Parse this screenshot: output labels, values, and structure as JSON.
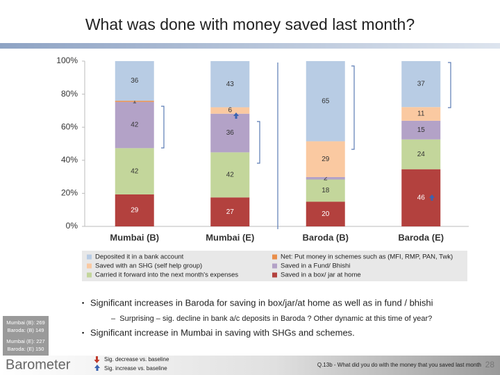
{
  "chart_data": {
    "type": "stacked_percent",
    "title": "What was done with money saved last month?",
    "categories": [
      "Mumbai (B)",
      "Mumbai (E)",
      "Baroda (B)",
      "Baroda (E)"
    ],
    "series": [
      {
        "name": "Saved in a box/ jar at home",
        "color": "#b3413e",
        "values": [
          29,
          27,
          20,
          46
        ]
      },
      {
        "name": "Carried it forward into the next month's expenses",
        "color": "#c3d69b",
        "values": [
          42,
          42,
          18,
          24
        ]
      },
      {
        "name": "Saved in a Fund/ Bhishi",
        "color": "#b3a2c7",
        "values": [
          42,
          36,
          2,
          15
        ]
      },
      {
        "name": "Saved with an SHG (self help group)",
        "color": "#fac9a1",
        "values": [
          null,
          6,
          29,
          11
        ]
      },
      {
        "name": "Net: Put money in schemes such as (MFI, RMP, PAN, Twk)",
        "color": "#e98e4a",
        "values": [
          1,
          null,
          null,
          null
        ]
      },
      {
        "name": "Deposited it in a bank account",
        "color": "#b8cce4",
        "values": [
          36,
          43,
          65,
          37
        ]
      }
    ],
    "ylim": [
      0,
      100
    ],
    "yticks": [
      {
        "value": 0,
        "label": "0%"
      },
      {
        "value": 20,
        "label": "20%"
      },
      {
        "value": 40,
        "label": "40%"
      },
      {
        "value": 60,
        "label": "60%"
      },
      {
        "value": 80,
        "label": "80%"
      },
      {
        "value": 100,
        "label": "100%"
      }
    ],
    "grid": false
  },
  "bullets": [
    "Significant increases in Baroda for saving in box/jar/at home as well as in fund / bhishi",
    "Significant increase in Mumbai in saving with SHGs and schemes."
  ],
  "sub_bullet": "Surprising – sig. decline in bank a/c deposits in Baroda ? Other dynamic at this time of year?",
  "sample_sizes": [
    "Mumbai (B): 269",
    "Baroda: (B) 149",
    "Mumbai (E): 227",
    "Baroda: (E) 150"
  ],
  "sig_legend": [
    "Sig. decrease vs. baseline",
    "Sig. increase vs. baseline"
  ],
  "logo": "Barometer",
  "footnote": "Q.13b - What did you do with the money that you saved last month",
  "page_number": "28"
}
